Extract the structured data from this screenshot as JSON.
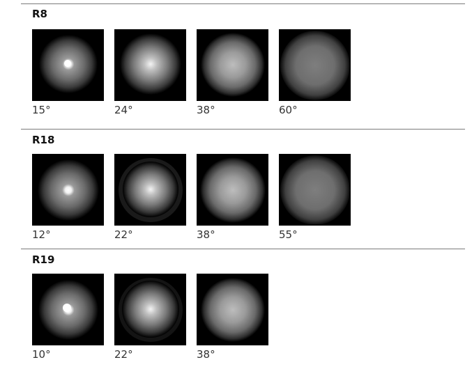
{
  "sections": [
    {
      "title": "R8",
      "tiles": [
        {
          "angle": "15°",
          "glow": "g-narrow"
        },
        {
          "angle": "24°",
          "glow": "g-mid"
        },
        {
          "angle": "38°",
          "glow": "g-wide"
        },
        {
          "angle": "60°",
          "glow": "g-flood"
        }
      ]
    },
    {
      "title": "R18",
      "tiles": [
        {
          "angle": "12°",
          "glow": "g-narrow"
        },
        {
          "angle": "22°",
          "glow": "g-mid"
        },
        {
          "angle": "38°",
          "glow": "g-wide"
        },
        {
          "angle": "55°",
          "glow": "g-flood"
        }
      ]
    },
    {
      "title": "R19",
      "tiles": [
        {
          "angle": "10°",
          "glow": "g-narrow"
        },
        {
          "angle": "22°",
          "glow": "g-mid"
        },
        {
          "angle": "38°",
          "glow": "g-wide"
        }
      ]
    }
  ]
}
